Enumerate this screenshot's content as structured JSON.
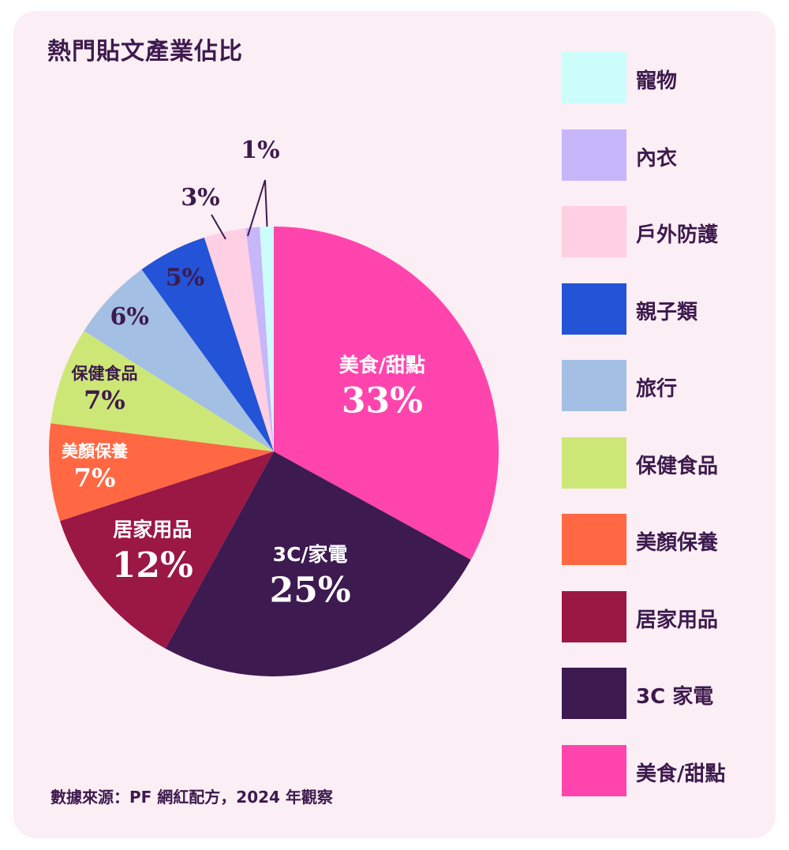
{
  "title": "熱門貼文產業佔比",
  "source": "數據來源：PF 網紅配方，2024 年觀察",
  "legend": [
    {
      "label": "寵物",
      "color": "#ccfdfb"
    },
    {
      "label": "內衣",
      "color": "#c7b6fa"
    },
    {
      "label": "戶外防護",
      "color": "#ffcfe4"
    },
    {
      "label": "親子類",
      "color": "#2353d6"
    },
    {
      "label": "旅行",
      "color": "#a3bfe3"
    },
    {
      "label": "保健食品",
      "color": "#cde777"
    },
    {
      "label": "美顏保養",
      "color": "#ff6843"
    },
    {
      "label": "居家用品",
      "color": "#9b1744"
    },
    {
      "label": "3C 家電",
      "color": "#3d1a50"
    },
    {
      "label": "美食/甜點",
      "color": "#ff45ad"
    }
  ],
  "chart_data": {
    "type": "pie",
    "title": "熱門貼文產業佔比",
    "slices": [
      {
        "name": "美食/甜點",
        "value": 33,
        "label": "美食/甜點",
        "pct": "33%",
        "color": "#ff45ad"
      },
      {
        "name": "3C/家電",
        "value": 25,
        "label": "3C/家電",
        "pct": "25%",
        "color": "#3d1a50"
      },
      {
        "name": "居家用品",
        "value": 12,
        "label": "居家用品",
        "pct": "12%",
        "color": "#9b1744"
      },
      {
        "name": "美顏保養",
        "value": 7,
        "label": "美顏保養",
        "pct": "7%",
        "color": "#ff6843"
      },
      {
        "name": "保健食品",
        "value": 7,
        "label": "保健食品",
        "pct": "7%",
        "color": "#cde777"
      },
      {
        "name": "旅行",
        "value": 6,
        "label": "",
        "pct": "6%",
        "color": "#a3bfe3"
      },
      {
        "name": "親子類",
        "value": 5,
        "label": "",
        "pct": "5%",
        "color": "#2353d6"
      },
      {
        "name": "戶外防護",
        "value": 3,
        "label": "",
        "pct": "3%",
        "color": "#ffcfe4"
      },
      {
        "name": "內衣",
        "value": 1,
        "label": "",
        "pct": "1%",
        "color": "#c7b6fa"
      },
      {
        "name": "寵物",
        "value": 1,
        "label": "",
        "pct": "1%",
        "color": "#ccfdfb"
      }
    ]
  }
}
